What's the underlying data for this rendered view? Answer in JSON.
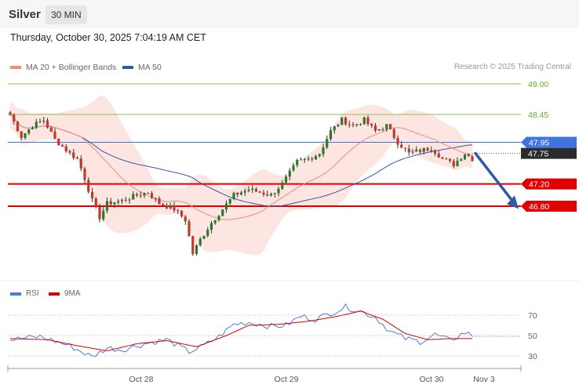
{
  "header": {
    "symbol": "Silver",
    "timeframe": "30 MIN",
    "datetime": "Thursday, October 30, 2025 7:04:19 AM CET"
  },
  "legend": {
    "ma20_label": "MA 20 + Bollinger Bands",
    "ma50_label": "MA 50",
    "credit": "Research © 2025 Trading Central",
    "rsi_label": "RSI",
    "rsi_ma_label": "9MA"
  },
  "colors": {
    "ma20": "#f08a80",
    "ma50": "#2f5aa8",
    "bollinger_fill": "#fde0dc",
    "candle_up": "#2b7a2b",
    "candle_down": "#c0392b",
    "green_level": "#8bc34a",
    "blue_level": "#3f73e0",
    "red_level": "#e00000",
    "arrow": "#2f5aa8",
    "rsi": "#4a7be0",
    "rsi_ma": "#e00000"
  },
  "chart_data": [
    {
      "type": "candlestick",
      "title": "Silver",
      "x_tick_labels": [
        "Oct 28",
        "Oct 29",
        "Oct 30",
        "Nov 3"
      ],
      "ylim": [
        45.8,
        49.4
      ],
      "levels": [
        {
          "value": 49.0,
          "label": "49.00",
          "style": "green-line"
        },
        {
          "value": 48.45,
          "label": "48.45",
          "style": "green-line"
        },
        {
          "value": 47.95,
          "label": "47.95",
          "style": "blue-line"
        },
        {
          "value": 47.75,
          "label": "47.75",
          "style": "current-price"
        },
        {
          "value": 47.2,
          "label": "47.20",
          "style": "red-line"
        },
        {
          "value": 46.8,
          "label": "46.80",
          "style": "red-line"
        }
      ],
      "anchors": [
        {
          "i": 0,
          "c": 48.45
        },
        {
          "i": 3,
          "c": 48.05
        },
        {
          "i": 6,
          "c": 48.25
        },
        {
          "i": 9,
          "c": 48.35
        },
        {
          "i": 12,
          "c": 48.0
        },
        {
          "i": 16,
          "c": 47.75
        },
        {
          "i": 18,
          "c": 47.65
        },
        {
          "i": 20,
          "c": 47.3
        },
        {
          "i": 22,
          "c": 46.9
        },
        {
          "i": 24,
          "c": 46.6
        },
        {
          "i": 26,
          "c": 46.85
        },
        {
          "i": 30,
          "c": 46.9
        },
        {
          "i": 34,
          "c": 47.0
        },
        {
          "i": 37,
          "c": 47.05
        },
        {
          "i": 40,
          "c": 46.85
        },
        {
          "i": 44,
          "c": 46.75
        },
        {
          "i": 47,
          "c": 46.55
        },
        {
          "i": 49,
          "c": 45.95
        },
        {
          "i": 51,
          "c": 46.2
        },
        {
          "i": 54,
          "c": 46.5
        },
        {
          "i": 57,
          "c": 46.75
        },
        {
          "i": 60,
          "c": 47.0
        },
        {
          "i": 64,
          "c": 47.1
        },
        {
          "i": 67,
          "c": 47.05
        },
        {
          "i": 70,
          "c": 47.0
        },
        {
          "i": 73,
          "c": 47.2
        },
        {
          "i": 77,
          "c": 47.6
        },
        {
          "i": 80,
          "c": 47.65
        },
        {
          "i": 83,
          "c": 47.75
        },
        {
          "i": 86,
          "c": 48.15
        },
        {
          "i": 89,
          "c": 48.35
        },
        {
          "i": 92,
          "c": 48.25
        },
        {
          "i": 95,
          "c": 48.35
        },
        {
          "i": 98,
          "c": 48.15
        },
        {
          "i": 101,
          "c": 48.25
        },
        {
          "i": 104,
          "c": 47.95
        },
        {
          "i": 107,
          "c": 47.75
        },
        {
          "i": 110,
          "c": 47.8
        },
        {
          "i": 113,
          "c": 47.85
        },
        {
          "i": 116,
          "c": 47.65
        },
        {
          "i": 119,
          "c": 47.55
        },
        {
          "i": 122,
          "c": 47.75
        },
        {
          "i": 124,
          "c": 47.65
        }
      ],
      "bar_count": 125
    },
    {
      "type": "line",
      "title": "RSI",
      "yticks": [
        30,
        50,
        70
      ],
      "ylim": [
        20,
        82
      ],
      "series": [
        {
          "name": "RSI",
          "anchors": [
            {
              "i": 0,
              "v": 46
            },
            {
              "i": 8,
              "v": 49
            },
            {
              "i": 16,
              "v": 40
            },
            {
              "i": 22,
              "v": 29
            },
            {
              "i": 26,
              "v": 38
            },
            {
              "i": 30,
              "v": 36
            },
            {
              "i": 36,
              "v": 42
            },
            {
              "i": 42,
              "v": 46
            },
            {
              "i": 48,
              "v": 34
            },
            {
              "i": 52,
              "v": 40
            },
            {
              "i": 56,
              "v": 49
            },
            {
              "i": 60,
              "v": 61
            },
            {
              "i": 64,
              "v": 63
            },
            {
              "i": 70,
              "v": 59
            },
            {
              "i": 74,
              "v": 60
            },
            {
              "i": 78,
              "v": 69
            },
            {
              "i": 82,
              "v": 66
            },
            {
              "i": 86,
              "v": 72
            },
            {
              "i": 90,
              "v": 78
            },
            {
              "i": 94,
              "v": 74
            },
            {
              "i": 98,
              "v": 68
            },
            {
              "i": 102,
              "v": 54
            },
            {
              "i": 106,
              "v": 47
            },
            {
              "i": 110,
              "v": 44
            },
            {
              "i": 114,
              "v": 51
            },
            {
              "i": 118,
              "v": 45
            },
            {
              "i": 122,
              "v": 53
            },
            {
              "i": 124,
              "v": 50
            }
          ]
        },
        {
          "name": "9MA",
          "anchors": [
            {
              "i": 0,
              "v": 47
            },
            {
              "i": 10,
              "v": 46
            },
            {
              "i": 18,
              "v": 40
            },
            {
              "i": 26,
              "v": 35
            },
            {
              "i": 34,
              "v": 42
            },
            {
              "i": 42,
              "v": 45
            },
            {
              "i": 50,
              "v": 39
            },
            {
              "i": 58,
              "v": 50
            },
            {
              "i": 64,
              "v": 60
            },
            {
              "i": 72,
              "v": 61
            },
            {
              "i": 80,
              "v": 64
            },
            {
              "i": 88,
              "v": 69
            },
            {
              "i": 94,
              "v": 74
            },
            {
              "i": 100,
              "v": 66
            },
            {
              "i": 106,
              "v": 52
            },
            {
              "i": 112,
              "v": 46
            },
            {
              "i": 118,
              "v": 47
            },
            {
              "i": 124,
              "v": 47
            }
          ]
        }
      ]
    }
  ]
}
